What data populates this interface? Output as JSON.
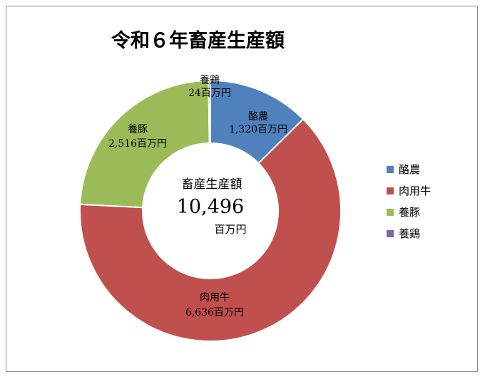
{
  "chart_data": {
    "type": "pie",
    "title": "令和６年畜産生産額",
    "center": {
      "label": "畜産生産額",
      "value": "10,496",
      "unit": "百万円"
    },
    "unit": "百万円",
    "total": 10496,
    "legend_position": "right",
    "slices": [
      {
        "name": "酪農",
        "value": 1320,
        "value_text": "1,320百万円",
        "color": "#4f81bd"
      },
      {
        "name": "肉用牛",
        "value": 6636,
        "value_text": "6,636百万円",
        "color": "#c0504d"
      },
      {
        "name": "養豚",
        "value": 2516,
        "value_text": "2,516百万円",
        "color": "#9bbb59"
      },
      {
        "name": "養鶏",
        "value": 24,
        "value_text": "24百万円",
        "color": "#8064a2"
      }
    ]
  }
}
